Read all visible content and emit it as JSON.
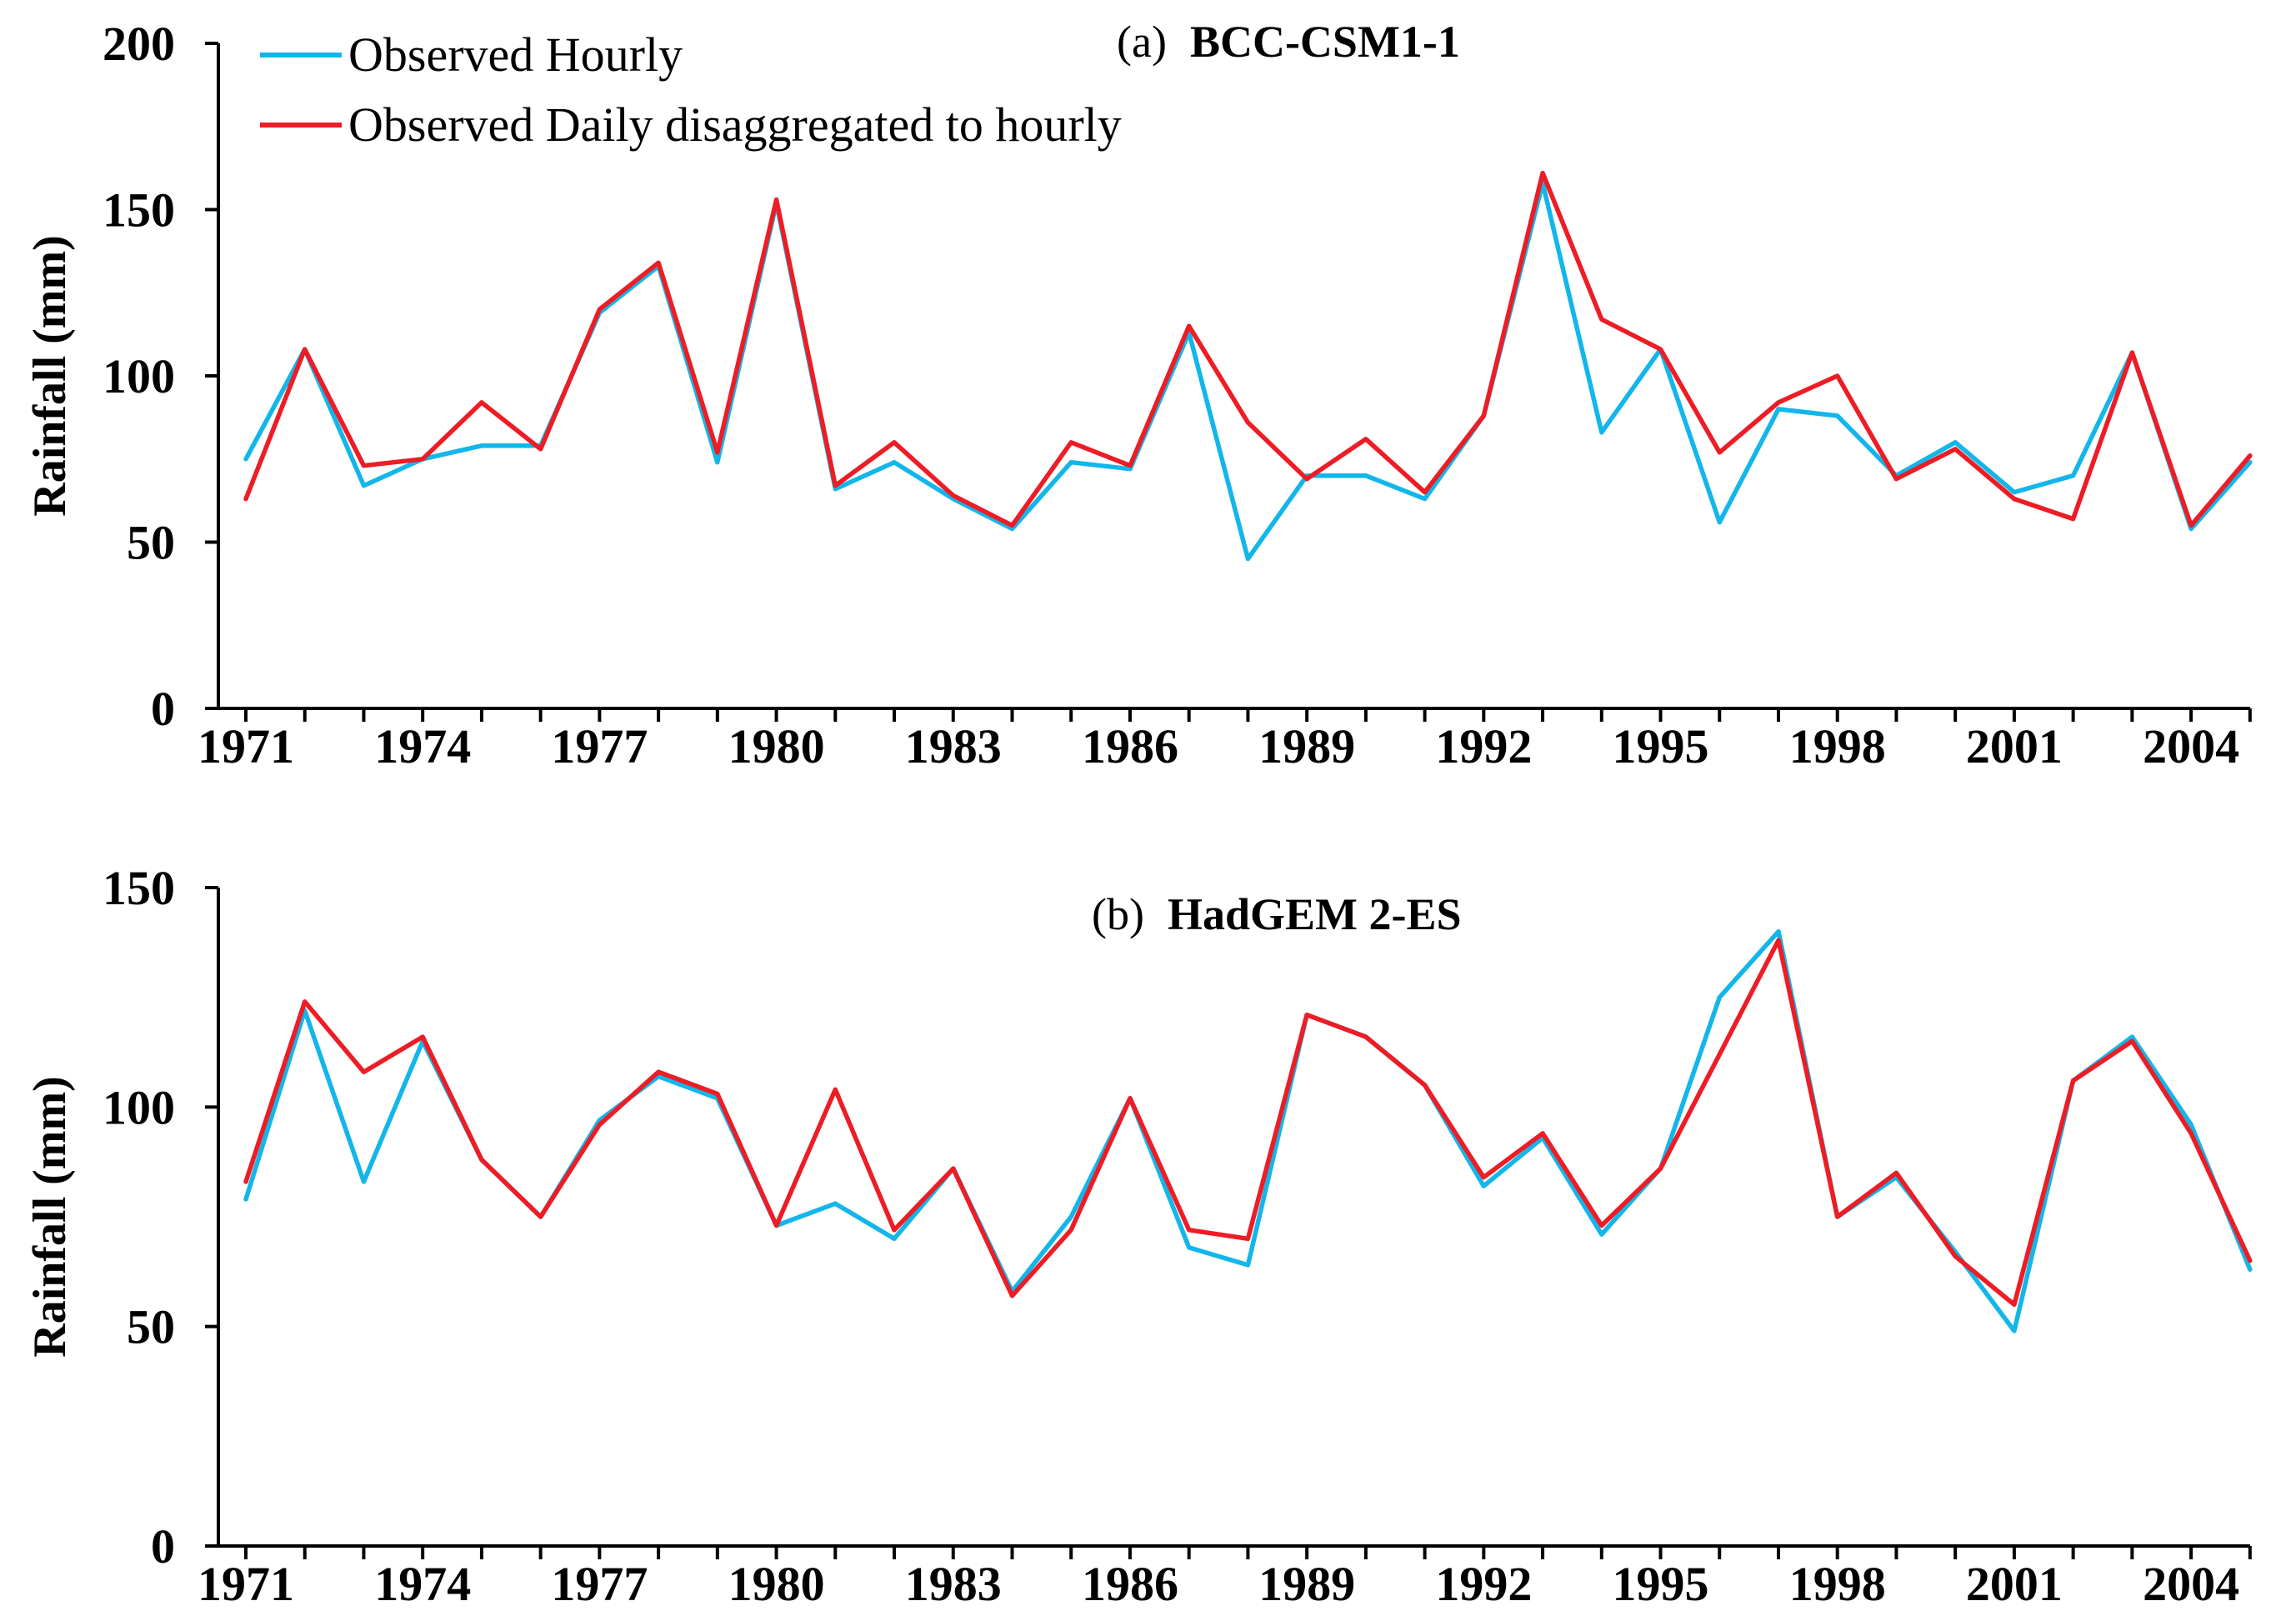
{
  "legend": [
    {
      "label": "Observed Hourly",
      "color": "#12b6ea"
    },
    {
      "label": "Observed Daily disaggregated to hourly",
      "color": "#ee1c25"
    }
  ],
  "chart_data": [
    {
      "type": "line",
      "title_prefix": "(a)",
      "title": "BCC-CSM1-1",
      "xlabel": "",
      "ylabel": "Rainfall (mm)",
      "ylim": [
        0,
        200
      ],
      "yticks": [
        0,
        50,
        100,
        150,
        200
      ],
      "x_tick_labels": [
        "1971",
        "1974",
        "1977",
        "1980",
        "1983",
        "1986",
        "1989",
        "1992",
        "1995",
        "1998",
        "2001",
        "2004"
      ],
      "x": [
        1971,
        1972,
        1973,
        1974,
        1975,
        1976,
        1977,
        1978,
        1979,
        1980,
        1981,
        1982,
        1983,
        1984,
        1985,
        1986,
        1987,
        1988,
        1989,
        1990,
        1991,
        1992,
        1993,
        1994,
        1995,
        1996,
        1997,
        1998,
        1999,
        2000,
        2001,
        2002,
        2003,
        2004,
        2005
      ],
      "series": [
        {
          "name": "Observed Hourly",
          "color": "#12b6ea",
          "values": [
            75,
            108,
            67,
            75,
            79,
            79,
            119,
            133,
            74,
            152,
            66,
            74,
            63,
            54,
            74,
            72,
            113,
            45,
            70,
            70,
            63,
            88,
            158,
            83,
            108,
            56,
            90,
            88,
            70,
            80,
            65,
            70,
            107,
            54,
            74
          ]
        },
        {
          "name": "Observed Daily disaggregated to hourly",
          "color": "#ee1c25",
          "values": [
            63,
            108,
            73,
            75,
            92,
            78,
            120,
            134,
            77,
            153,
            67,
            80,
            64,
            55,
            80,
            73,
            115,
            86,
            69,
            81,
            65,
            88,
            161,
            117,
            108,
            77,
            92,
            100,
            69,
            78,
            63,
            57,
            107,
            55,
            76
          ]
        }
      ]
    },
    {
      "type": "line",
      "title_prefix": "(b)",
      "title": "HadGEM 2-ES",
      "xlabel": "",
      "ylabel": "Rainfall (mm)",
      "ylim": [
        0,
        150
      ],
      "yticks": [
        0,
        50,
        100,
        150
      ],
      "x_tick_labels": [
        "1971",
        "1974",
        "1977",
        "1980",
        "1983",
        "1986",
        "1989",
        "1992",
        "1995",
        "1998",
        "2001",
        "2004"
      ],
      "x": [
        1971,
        1972,
        1973,
        1974,
        1975,
        1976,
        1977,
        1978,
        1979,
        1980,
        1981,
        1982,
        1983,
        1984,
        1985,
        1986,
        1987,
        1988,
        1989,
        1990,
        1991,
        1992,
        1993,
        1994,
        1995,
        1996,
        1997,
        1998,
        1999,
        2000,
        2001,
        2002,
        2003,
        2004,
        2005
      ],
      "series": [
        {
          "name": "Observed Hourly",
          "color": "#12b6ea",
          "values": [
            79,
            122,
            83,
            115,
            88,
            75,
            97,
            107,
            102,
            73,
            78,
            70,
            86,
            58,
            75,
            102,
            68,
            64,
            121,
            116,
            105,
            82,
            93,
            71,
            86,
            125,
            140,
            75,
            84,
            67,
            49,
            106,
            116,
            96,
            63
          ]
        },
        {
          "name": "Observed Daily disaggregated to hourly",
          "color": "#ee1c25",
          "values": [
            83,
            124,
            108,
            116,
            88,
            75,
            96,
            108,
            103,
            73,
            104,
            72,
            86,
            57,
            72,
            102,
            72,
            70,
            121,
            116,
            105,
            84,
            94,
            73,
            86,
            112,
            138,
            75,
            85,
            66,
            55,
            106,
            115,
            94,
            65
          ]
        }
      ]
    }
  ]
}
